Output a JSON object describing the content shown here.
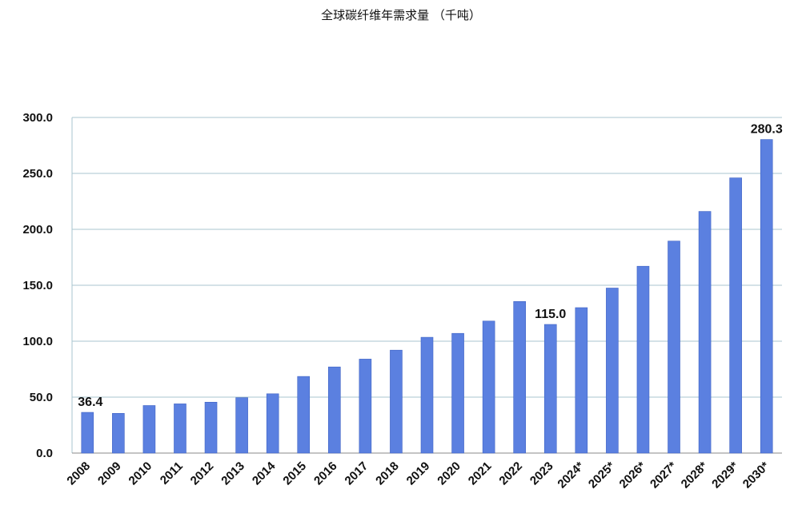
{
  "chart_data": {
    "type": "bar",
    "title": "全球碳纤维年需求量 （千吨）",
    "categories": [
      "2008",
      "2009",
      "2010",
      "2011",
      "2012",
      "2013",
      "2014",
      "2015",
      "2016",
      "2017",
      "2018",
      "2019",
      "2020",
      "2021",
      "2022",
      "2023",
      "2024*",
      "2025*",
      "2026*",
      "2027*",
      "2028*",
      "2029*",
      "2030*"
    ],
    "values": [
      36.4,
      35.5,
      42.5,
      44.0,
      45.5,
      49.5,
      53.0,
      68.5,
      77.0,
      84.0,
      92.0,
      103.5,
      107.0,
      118.0,
      135.5,
      115.0,
      130.0,
      147.5,
      167.0,
      189.5,
      216.0,
      246.0,
      280.3
    ],
    "data_labels": [
      {
        "category": "2008",
        "text": "36.4"
      },
      {
        "category": "2023",
        "text": "115.0"
      },
      {
        "category": "2030*",
        "text": "280.3"
      }
    ],
    "ylim": [
      0,
      300
    ],
    "yticks": [
      "0.0",
      "50.0",
      "100.0",
      "150.0",
      "200.0",
      "250.0",
      "300.0"
    ],
    "grid": true,
    "bar_color": "#5b80e0",
    "xlabel": "",
    "ylabel": ""
  }
}
